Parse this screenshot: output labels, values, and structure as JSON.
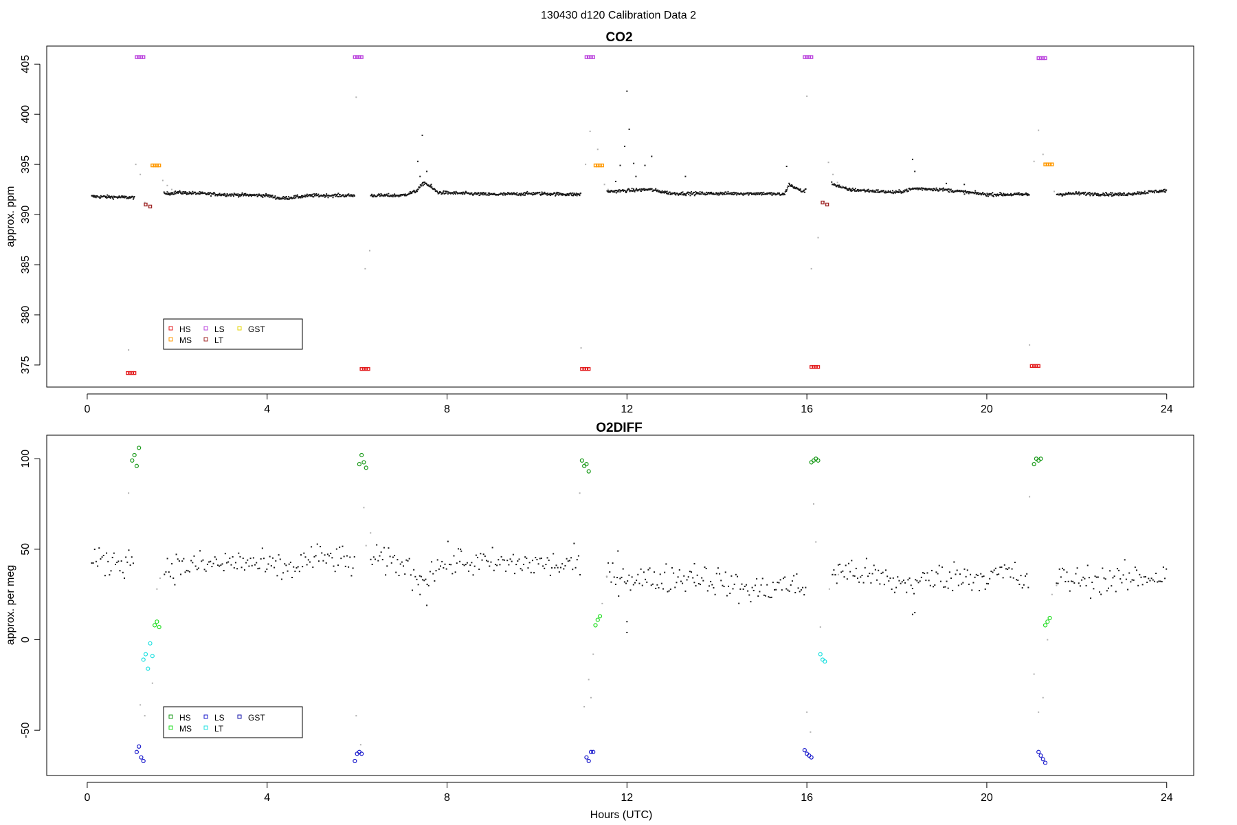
{
  "figure_title": "130430   d120   Calibration Data 2",
  "colors": {
    "HS": "#e31a1c",
    "MS": "#ff9900",
    "LS": "#bb44dd",
    "LT": "#a02828",
    "GST": "#e6d600",
    "HS2": "#1a9a1a",
    "MS2": "#22dd22",
    "LS2": "#1a1acc",
    "LT2": "#22e0e0",
    "GST2": "#1010aa",
    "sample": "#1a1a1a",
    "flush": "#b0b0b0"
  },
  "chart_data": [
    {
      "type": "scatter",
      "title": "CO2",
      "xlabel": "",
      "ylabel": "approx. ppm",
      "xlim": [
        -0.9,
        24.6
      ],
      "ylim": [
        372.8,
        406.8
      ],
      "xticks": [
        0,
        4,
        8,
        12,
        16,
        20,
        24
      ],
      "yticks": [
        375,
        380,
        385,
        390,
        395,
        400,
        405
      ],
      "grid": false,
      "legend_position": "bottom-left",
      "legend": [
        "HS",
        "MS",
        "LS",
        "LT",
        "GST"
      ],
      "baseline": [
        [
          0.1,
          391.8
        ],
        [
          1.0,
          391.7
        ],
        [
          2.0,
          392.2
        ],
        [
          3.0,
          392.0
        ],
        [
          4.0,
          391.9
        ],
        [
          4.3,
          391.6
        ],
        [
          5.0,
          391.9
        ],
        [
          5.9,
          391.9
        ],
        [
          6.3,
          391.9
        ],
        [
          7.0,
          391.9
        ],
        [
          7.3,
          392.3
        ],
        [
          7.5,
          393.2
        ],
        [
          7.8,
          392.2
        ],
        [
          9.0,
          392.0
        ],
        [
          10.0,
          392.1
        ],
        [
          10.9,
          392.0
        ],
        [
          11.6,
          392.3
        ],
        [
          12.5,
          392.5
        ],
        [
          13.0,
          392.1
        ],
        [
          14.0,
          392.1
        ],
        [
          15.0,
          392.1
        ],
        [
          15.5,
          392.0
        ],
        [
          15.6,
          393.0
        ],
        [
          15.9,
          392.3
        ],
        [
          16.5,
          393.2
        ],
        [
          16.9,
          392.5
        ],
        [
          18.0,
          392.2
        ],
        [
          18.4,
          392.6
        ],
        [
          19.0,
          392.5
        ],
        [
          20.0,
          392.0
        ],
        [
          20.9,
          392.0
        ],
        [
          21.5,
          392.0
        ],
        [
          22.0,
          392.1
        ],
        [
          23.0,
          392.0
        ],
        [
          24.0,
          392.4
        ]
      ],
      "calibration_series": [
        {
          "name": "HS",
          "points": [
            [
              0.9,
              374.2
            ],
            [
              0.95,
              374.2
            ],
            [
              1.0,
              374.2
            ],
            [
              1.05,
              374.2
            ],
            [
              6.1,
              374.6
            ],
            [
              6.15,
              374.6
            ],
            [
              6.2,
              374.6
            ],
            [
              6.25,
              374.6
            ],
            [
              11.0,
              374.6
            ],
            [
              11.05,
              374.6
            ],
            [
              11.1,
              374.6
            ],
            [
              11.15,
              374.6
            ],
            [
              16.1,
              374.8
            ],
            [
              16.15,
              374.8
            ],
            [
              16.2,
              374.8
            ],
            [
              16.25,
              374.8
            ],
            [
              21.0,
              374.9
            ],
            [
              21.05,
              374.9
            ],
            [
              21.1,
              374.9
            ],
            [
              21.15,
              374.9
            ]
          ]
        },
        {
          "name": "LS",
          "points": [
            [
              1.1,
              405.7
            ],
            [
              1.15,
              405.7
            ],
            [
              1.2,
              405.7
            ],
            [
              1.25,
              405.7
            ],
            [
              5.95,
              405.7
            ],
            [
              6.0,
              405.7
            ],
            [
              6.05,
              405.7
            ],
            [
              6.1,
              405.7
            ],
            [
              11.1,
              405.7
            ],
            [
              11.15,
              405.7
            ],
            [
              11.2,
              405.7
            ],
            [
              11.25,
              405.7
            ],
            [
              15.95,
              405.7
            ],
            [
              16.0,
              405.7
            ],
            [
              16.05,
              405.7
            ],
            [
              16.1,
              405.7
            ],
            [
              21.15,
              405.6
            ],
            [
              21.2,
              405.6
            ],
            [
              21.25,
              405.6
            ],
            [
              21.3,
              405.6
            ]
          ]
        },
        {
          "name": "MS",
          "points": [
            [
              1.45,
              394.9
            ],
            [
              1.5,
              394.9
            ],
            [
              1.55,
              394.9
            ],
            [
              1.6,
              394.9
            ],
            [
              11.3,
              394.9
            ],
            [
              11.35,
              394.9
            ],
            [
              11.4,
              394.9
            ],
            [
              11.45,
              394.9
            ],
            [
              21.3,
              395.0
            ],
            [
              21.35,
              395.0
            ],
            [
              21.4,
              395.0
            ],
            [
              21.45,
              395.0
            ]
          ]
        },
        {
          "name": "LT",
          "points": [
            [
              1.3,
              391.0
            ],
            [
              1.4,
              390.8
            ],
            [
              16.35,
              391.2
            ],
            [
              16.45,
              391.0
            ]
          ]
        }
      ],
      "flush_points": [
        [
          0.92,
          376.5
        ],
        [
          1.08,
          395.0
        ],
        [
          1.18,
          394.0
        ],
        [
          1.28,
          391.2
        ],
        [
          1.68,
          393.4
        ],
        [
          1.78,
          392.9
        ],
        [
          1.88,
          392.5
        ],
        [
          5.98,
          401.7
        ],
        [
          6.18,
          384.6
        ],
        [
          6.28,
          386.4
        ],
        [
          10.98,
          376.7
        ],
        [
          11.08,
          395.0
        ],
        [
          11.18,
          398.3
        ],
        [
          11.35,
          396.5
        ],
        [
          11.5,
          393.0
        ],
        [
          11.58,
          392.5
        ],
        [
          16.0,
          401.8
        ],
        [
          16.1,
          384.6
        ],
        [
          16.25,
          387.7
        ],
        [
          16.38,
          391.3
        ],
        [
          16.48,
          395.2
        ],
        [
          16.58,
          394.0
        ],
        [
          16.68,
          393.2
        ],
        [
          16.78,
          392.8
        ],
        [
          20.95,
          377.0
        ],
        [
          21.05,
          395.3
        ],
        [
          21.15,
          398.4
        ],
        [
          21.25,
          396.0
        ],
        [
          21.5,
          392.3
        ],
        [
          21.6,
          392.1
        ]
      ],
      "excursions": [
        [
          7.45,
          397.9
        ],
        [
          7.35,
          395.3
        ],
        [
          7.4,
          393.8
        ],
        [
          7.55,
          394.3
        ],
        [
          7.65,
          393.0
        ],
        [
          11.95,
          396.8
        ],
        [
          12.0,
          402.3
        ],
        [
          12.05,
          398.5
        ],
        [
          11.85,
          394.9
        ],
        [
          12.15,
          395.1
        ],
        [
          12.4,
          394.9
        ],
        [
          12.55,
          395.8
        ],
        [
          12.2,
          393.8
        ],
        [
          11.75,
          393.3
        ],
        [
          13.3,
          393.8
        ],
        [
          15.55,
          394.8
        ],
        [
          18.35,
          395.5
        ],
        [
          18.4,
          394.3
        ],
        [
          19.1,
          393.1
        ],
        [
          19.5,
          393.0
        ]
      ]
    },
    {
      "type": "scatter",
      "title": "O2DIFF",
      "xlabel": "Hours (UTC)",
      "ylabel": "approx. per meg",
      "xlim": [
        -0.9,
        24.6
      ],
      "ylim": [
        -75,
        113
      ],
      "xticks": [
        0,
        4,
        8,
        12,
        16,
        20,
        24
      ],
      "yticks": [
        -50,
        0,
        50,
        100
      ],
      "grid": false,
      "legend_position": "bottom-left",
      "legend": [
        "HS",
        "MS",
        "LS",
        "LT",
        "GST"
      ],
      "baseline": [
        [
          0.1,
          43
        ],
        [
          0.5,
          43
        ],
        [
          1.0,
          44
        ],
        [
          1.7,
          40
        ],
        [
          2.5,
          41
        ],
        [
          3.5,
          43
        ],
        [
          4.0,
          40
        ],
        [
          4.5,
          39
        ],
        [
          5.0,
          45
        ],
        [
          5.5,
          45
        ],
        [
          5.9,
          42
        ],
        [
          6.3,
          44
        ],
        [
          7.0,
          42
        ],
        [
          7.4,
          34
        ],
        [
          7.6,
          37
        ],
        [
          8.0,
          43
        ],
        [
          9.0,
          42
        ],
        [
          10.0,
          42
        ],
        [
          10.5,
          41
        ],
        [
          10.9,
          42
        ],
        [
          11.5,
          35
        ],
        [
          12.0,
          35
        ],
        [
          12.5,
          33
        ],
        [
          13.0,
          34
        ],
        [
          13.5,
          35
        ],
        [
          14.0,
          33
        ],
        [
          14.4,
          29
        ],
        [
          15.0,
          27
        ],
        [
          15.5,
          31
        ],
        [
          15.9,
          28
        ],
        [
          16.5,
          37
        ],
        [
          17.0,
          38
        ],
        [
          17.5,
          35
        ],
        [
          18.0,
          31
        ],
        [
          18.5,
          32
        ],
        [
          19.0,
          35
        ],
        [
          20.0,
          35
        ],
        [
          20.5,
          37
        ],
        [
          20.9,
          31
        ],
        [
          21.5,
          34
        ],
        [
          22.0,
          33
        ],
        [
          23.0,
          33
        ],
        [
          24.0,
          36
        ]
      ],
      "calibration_series": [
        {
          "name": "HS",
          "points": [
            [
              1.0,
              99
            ],
            [
              1.05,
              102
            ],
            [
              1.1,
              96
            ],
            [
              1.15,
              106
            ],
            [
              6.05,
              97
            ],
            [
              6.1,
              102
            ],
            [
              6.15,
              98
            ],
            [
              6.2,
              95
            ],
            [
              11.0,
              99
            ],
            [
              11.05,
              96
            ],
            [
              11.1,
              97
            ],
            [
              11.15,
              93
            ],
            [
              16.1,
              98
            ],
            [
              16.15,
              99
            ],
            [
              16.2,
              100
            ],
            [
              16.25,
              99
            ],
            [
              21.05,
              97
            ],
            [
              21.1,
              100
            ],
            [
              21.15,
              99
            ],
            [
              21.2,
              100
            ]
          ]
        },
        {
          "name": "MS",
          "points": [
            [
              1.5,
              8
            ],
            [
              1.55,
              10
            ],
            [
              1.6,
              7
            ],
            [
              11.3,
              8
            ],
            [
              11.35,
              11
            ],
            [
              11.4,
              13
            ],
            [
              21.3,
              8
            ],
            [
              21.35,
              10
            ],
            [
              21.4,
              12
            ]
          ]
        },
        {
          "name": "LS",
          "points": [
            [
              1.1,
              -62
            ],
            [
              1.15,
              -59
            ],
            [
              1.2,
              -65
            ],
            [
              1.25,
              -67
            ],
            [
              5.95,
              -67
            ],
            [
              6.0,
              -63
            ],
            [
              6.05,
              -62
            ],
            [
              6.1,
              -63
            ],
            [
              11.1,
              -65
            ],
            [
              11.15,
              -67
            ],
            [
              11.2,
              -62
            ],
            [
              11.25,
              -62
            ],
            [
              15.95,
              -61
            ],
            [
              16.0,
              -63
            ],
            [
              16.05,
              -64
            ],
            [
              16.1,
              -65
            ],
            [
              21.15,
              -62
            ],
            [
              21.2,
              -64
            ],
            [
              21.25,
              -66
            ],
            [
              21.3,
              -68
            ]
          ]
        },
        {
          "name": "LT",
          "points": [
            [
              1.25,
              -11
            ],
            [
              1.3,
              -8
            ],
            [
              1.35,
              -16
            ],
            [
              1.4,
              -2
            ],
            [
              1.45,
              -9
            ],
            [
              16.3,
              -8
            ],
            [
              16.35,
              -11
            ],
            [
              16.4,
              -12
            ]
          ]
        }
      ],
      "flush_points": [
        [
          0.92,
          81
        ],
        [
          1.18,
          -36
        ],
        [
          1.28,
          -42
        ],
        [
          1.45,
          -24
        ],
        [
          1.55,
          28
        ],
        [
          1.62,
          34
        ],
        [
          5.98,
          -42
        ],
        [
          6.08,
          -58
        ],
        [
          6.15,
          73
        ],
        [
          6.2,
          52
        ],
        [
          6.3,
          59
        ],
        [
          10.95,
          81
        ],
        [
          11.05,
          -37
        ],
        [
          11.15,
          -22
        ],
        [
          11.2,
          -32
        ],
        [
          11.25,
          -8
        ],
        [
          11.45,
          20
        ],
        [
          11.55,
          35
        ],
        [
          16.0,
          -40
        ],
        [
          16.08,
          -51
        ],
        [
          16.15,
          75
        ],
        [
          16.2,
          54
        ],
        [
          16.3,
          7
        ],
        [
          16.5,
          28
        ],
        [
          16.6,
          36
        ],
        [
          16.7,
          36
        ],
        [
          20.95,
          79
        ],
        [
          21.05,
          -19
        ],
        [
          21.15,
          -40
        ],
        [
          21.25,
          -32
        ],
        [
          21.35,
          0
        ],
        [
          21.45,
          25
        ],
        [
          21.55,
          30
        ]
      ],
      "excursions": [
        [
          7.55,
          19
        ],
        [
          12.0,
          10
        ],
        [
          12.0,
          4
        ],
        [
          11.8,
          49
        ],
        [
          18.4,
          15
        ],
        [
          18.35,
          14
        ],
        [
          8.3,
          50
        ],
        [
          13.5,
          42
        ],
        [
          7.4,
          25
        ]
      ]
    }
  ]
}
